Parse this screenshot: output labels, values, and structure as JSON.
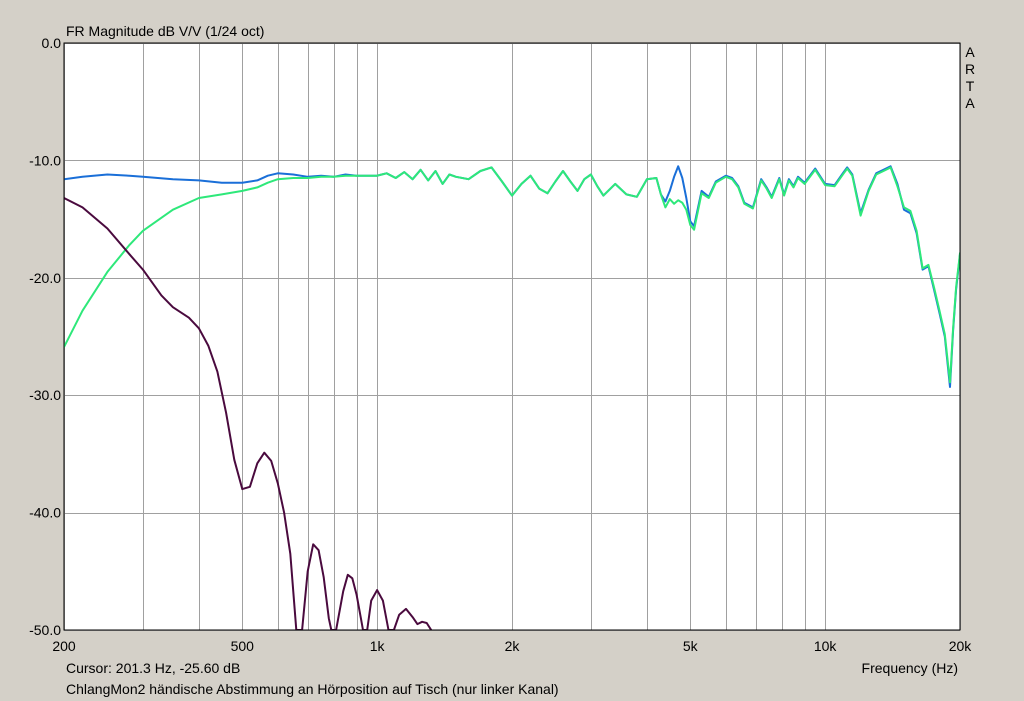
{
  "window": {
    "background_color": "#d4d0c8",
    "plot_background_color": "#ffffff",
    "grid_color": "#a0a0a0"
  },
  "chart_data": {
    "type": "line",
    "title": "FR Magnitude dB V/V (1/24 oct)",
    "xlabel": "Frequency (Hz)",
    "ylabel": "",
    "xscale": "log",
    "xlim": [
      200,
      20000
    ],
    "ylim": [
      -50,
      0
    ],
    "grid": true,
    "x_tick_labels": [
      {
        "value": 200,
        "label": "200"
      },
      {
        "value": 500,
        "label": "500"
      },
      {
        "value": 1000,
        "label": "1k"
      },
      {
        "value": 2000,
        "label": "2k"
      },
      {
        "value": 5000,
        "label": "5k"
      },
      {
        "value": 10000,
        "label": "10k"
      },
      {
        "value": 20000,
        "label": "20k"
      }
    ],
    "x_gridlines": [
      200,
      300,
      400,
      500,
      600,
      700,
      800,
      900,
      1000,
      2000,
      3000,
      4000,
      5000,
      6000,
      7000,
      8000,
      9000,
      10000,
      20000
    ],
    "y_ticks": [
      0,
      -10,
      -20,
      -30,
      -40,
      -50
    ],
    "y_tick_labels": [
      "0.0",
      "-10.0",
      "-20.0",
      "-30.0",
      "-40.0",
      "-50.0"
    ],
    "watermark_letters": [
      "A",
      "R",
      "T",
      "A"
    ],
    "cursor_readout": "Cursor: 201.3 Hz, -25.60 dB",
    "caption": "ChlangMon2 händische Abstimmung an Hörposition auf Tisch (nur linker Kanal)",
    "series": [
      {
        "color": "#1a6fd8",
        "points": [
          [
            200,
            -11.6
          ],
          [
            220,
            -11.4
          ],
          [
            250,
            -11.2
          ],
          [
            280,
            -11.3
          ],
          [
            300,
            -11.4
          ],
          [
            350,
            -11.6
          ],
          [
            400,
            -11.7
          ],
          [
            450,
            -11.9
          ],
          [
            500,
            -11.9
          ],
          [
            540,
            -11.7
          ],
          [
            570,
            -11.3
          ],
          [
            600,
            -11.1
          ],
          [
            650,
            -11.2
          ],
          [
            700,
            -11.4
          ],
          [
            750,
            -11.3
          ],
          [
            800,
            -11.4
          ],
          [
            850,
            -11.2
          ],
          [
            900,
            -11.3
          ],
          [
            950,
            -11.3
          ],
          [
            1000,
            -11.3
          ],
          [
            1050,
            -11.1
          ],
          [
            1100,
            -11.5
          ],
          [
            1150,
            -11.0
          ],
          [
            1200,
            -11.6
          ],
          [
            1250,
            -10.8
          ],
          [
            1300,
            -11.7
          ],
          [
            1350,
            -10.9
          ],
          [
            1400,
            -12.0
          ],
          [
            1450,
            -11.2
          ],
          [
            1500,
            -11.4
          ],
          [
            1600,
            -11.6
          ],
          [
            1700,
            -10.9
          ],
          [
            1800,
            -10.6
          ],
          [
            1900,
            -11.8
          ],
          [
            2000,
            -13.0
          ],
          [
            2100,
            -12.0
          ],
          [
            2200,
            -11.3
          ],
          [
            2300,
            -12.4
          ],
          [
            2400,
            -12.8
          ],
          [
            2500,
            -11.8
          ],
          [
            2600,
            -10.9
          ],
          [
            2700,
            -11.8
          ],
          [
            2800,
            -12.6
          ],
          [
            2900,
            -11.6
          ],
          [
            3000,
            -11.2
          ],
          [
            3100,
            -12.2
          ],
          [
            3200,
            -13.0
          ],
          [
            3400,
            -12.0
          ],
          [
            3600,
            -12.9
          ],
          [
            3800,
            -13.1
          ],
          [
            4000,
            -11.6
          ],
          [
            4200,
            -11.5
          ],
          [
            4300,
            -12.9
          ],
          [
            4400,
            -13.5
          ],
          [
            4500,
            -12.6
          ],
          [
            4600,
            -11.4
          ],
          [
            4700,
            -10.5
          ],
          [
            4800,
            -11.5
          ],
          [
            4900,
            -13.2
          ],
          [
            5000,
            -15.2
          ],
          [
            5100,
            -15.6
          ],
          [
            5300,
            -12.6
          ],
          [
            5500,
            -13.1
          ],
          [
            5700,
            -11.8
          ],
          [
            6000,
            -11.3
          ],
          [
            6200,
            -11.5
          ],
          [
            6400,
            -12.2
          ],
          [
            6600,
            -13.6
          ],
          [
            6900,
            -14.0
          ],
          [
            7200,
            -11.6
          ],
          [
            7400,
            -12.3
          ],
          [
            7600,
            -13.1
          ],
          [
            7900,
            -11.5
          ],
          [
            8100,
            -12.9
          ],
          [
            8300,
            -11.6
          ],
          [
            8500,
            -12.2
          ],
          [
            8700,
            -11.4
          ],
          [
            9000,
            -11.9
          ],
          [
            9500,
            -10.7
          ],
          [
            10000,
            -12.0
          ],
          [
            10500,
            -12.1
          ],
          [
            11000,
            -11.0
          ],
          [
            11200,
            -10.6
          ],
          [
            11500,
            -11.2
          ],
          [
            12000,
            -14.5
          ],
          [
            12500,
            -12.5
          ],
          [
            13000,
            -11.1
          ],
          [
            13500,
            -10.8
          ],
          [
            14000,
            -10.5
          ],
          [
            14500,
            -12.0
          ],
          [
            15000,
            -14.2
          ],
          [
            15500,
            -14.5
          ],
          [
            16000,
            -16.2
          ],
          [
            16500,
            -19.3
          ],
          [
            17000,
            -19.0
          ],
          [
            17500,
            -21.0
          ],
          [
            18000,
            -23.0
          ],
          [
            18500,
            -25.0
          ],
          [
            19000,
            -29.3
          ],
          [
            19300,
            -24.5
          ],
          [
            19600,
            -21.0
          ],
          [
            20000,
            -18.0
          ],
          [
            20400,
            -19.8
          ]
        ]
      },
      {
        "color": "#2ee87a",
        "points": [
          [
            200,
            -25.9
          ],
          [
            220,
            -22.8
          ],
          [
            250,
            -19.5
          ],
          [
            280,
            -17.2
          ],
          [
            300,
            -16.0
          ],
          [
            350,
            -14.2
          ],
          [
            400,
            -13.2
          ],
          [
            450,
            -12.9
          ],
          [
            500,
            -12.6
          ],
          [
            540,
            -12.3
          ],
          [
            570,
            -11.9
          ],
          [
            600,
            -11.6
          ],
          [
            650,
            -11.5
          ],
          [
            700,
            -11.5
          ],
          [
            750,
            -11.4
          ],
          [
            800,
            -11.4
          ],
          [
            850,
            -11.3
          ],
          [
            900,
            -11.3
          ],
          [
            950,
            -11.3
          ],
          [
            1000,
            -11.3
          ],
          [
            1050,
            -11.1
          ],
          [
            1100,
            -11.5
          ],
          [
            1150,
            -11.0
          ],
          [
            1200,
            -11.6
          ],
          [
            1250,
            -10.8
          ],
          [
            1300,
            -11.7
          ],
          [
            1350,
            -10.9
          ],
          [
            1400,
            -12.0
          ],
          [
            1450,
            -11.2
          ],
          [
            1500,
            -11.4
          ],
          [
            1600,
            -11.6
          ],
          [
            1700,
            -10.9
          ],
          [
            1800,
            -10.6
          ],
          [
            1900,
            -11.8
          ],
          [
            2000,
            -13.0
          ],
          [
            2100,
            -12.0
          ],
          [
            2200,
            -11.3
          ],
          [
            2300,
            -12.4
          ],
          [
            2400,
            -12.8
          ],
          [
            2500,
            -11.8
          ],
          [
            2600,
            -10.9
          ],
          [
            2700,
            -11.8
          ],
          [
            2800,
            -12.6
          ],
          [
            2900,
            -11.6
          ],
          [
            3000,
            -11.2
          ],
          [
            3100,
            -12.2
          ],
          [
            3200,
            -13.0
          ],
          [
            3400,
            -12.0
          ],
          [
            3600,
            -12.9
          ],
          [
            3800,
            -13.1
          ],
          [
            4000,
            -11.6
          ],
          [
            4200,
            -11.5
          ],
          [
            4300,
            -12.9
          ],
          [
            4400,
            -14.0
          ],
          [
            4500,
            -13.3
          ],
          [
            4600,
            -13.7
          ],
          [
            4700,
            -13.4
          ],
          [
            4800,
            -13.6
          ],
          [
            4900,
            -14.2
          ],
          [
            5000,
            -15.5
          ],
          [
            5100,
            -15.9
          ],
          [
            5300,
            -12.8
          ],
          [
            5500,
            -13.2
          ],
          [
            5700,
            -11.9
          ],
          [
            6000,
            -11.4
          ],
          [
            6200,
            -11.6
          ],
          [
            6400,
            -12.3
          ],
          [
            6600,
            -13.7
          ],
          [
            6900,
            -14.1
          ],
          [
            7200,
            -11.7
          ],
          [
            7400,
            -12.4
          ],
          [
            7600,
            -13.2
          ],
          [
            7900,
            -11.6
          ],
          [
            8100,
            -13.0
          ],
          [
            8300,
            -11.7
          ],
          [
            8500,
            -12.3
          ],
          [
            8700,
            -11.5
          ],
          [
            9000,
            -12.0
          ],
          [
            9500,
            -10.8
          ],
          [
            10000,
            -12.1
          ],
          [
            10500,
            -12.2
          ],
          [
            11000,
            -11.1
          ],
          [
            11200,
            -10.7
          ],
          [
            11500,
            -11.3
          ],
          [
            12000,
            -14.7
          ],
          [
            12500,
            -12.6
          ],
          [
            13000,
            -11.2
          ],
          [
            13500,
            -10.9
          ],
          [
            14000,
            -10.6
          ],
          [
            14500,
            -12.2
          ],
          [
            15000,
            -14.0
          ],
          [
            15500,
            -14.3
          ],
          [
            16000,
            -16.0
          ],
          [
            16500,
            -19.2
          ],
          [
            17000,
            -18.9
          ],
          [
            17500,
            -20.8
          ],
          [
            18000,
            -22.8
          ],
          [
            18500,
            -24.8
          ],
          [
            19000,
            -28.9
          ],
          [
            19300,
            -24.3
          ],
          [
            19600,
            -20.8
          ],
          [
            20000,
            -17.9
          ],
          [
            20400,
            -19.6
          ]
        ]
      },
      {
        "color": "#4a0a3e",
        "points": [
          [
            200,
            -13.2
          ],
          [
            220,
            -14.0
          ],
          [
            250,
            -15.8
          ],
          [
            280,
            -18.0
          ],
          [
            300,
            -19.3
          ],
          [
            330,
            -21.5
          ],
          [
            350,
            -22.5
          ],
          [
            380,
            -23.4
          ],
          [
            400,
            -24.3
          ],
          [
            420,
            -25.8
          ],
          [
            440,
            -28.0
          ],
          [
            460,
            -31.5
          ],
          [
            480,
            -35.5
          ],
          [
            500,
            -38.0
          ],
          [
            520,
            -37.8
          ],
          [
            540,
            -35.8
          ],
          [
            560,
            -34.9
          ],
          [
            580,
            -35.6
          ],
          [
            600,
            -37.5
          ],
          [
            620,
            -40.0
          ],
          [
            640,
            -43.5
          ],
          [
            660,
            -50.0
          ],
          [
            680,
            -50.0
          ],
          [
            700,
            -45.0
          ],
          [
            720,
            -42.7
          ],
          [
            740,
            -43.2
          ],
          [
            760,
            -45.5
          ],
          [
            780,
            -49.0
          ],
          [
            790,
            -50.0
          ],
          [
            810,
            -50.0
          ],
          [
            840,
            -46.7
          ],
          [
            860,
            -45.3
          ],
          [
            880,
            -45.6
          ],
          [
            900,
            -47.0
          ],
          [
            920,
            -49.0
          ],
          [
            930,
            -50.0
          ],
          [
            950,
            -50.0
          ],
          [
            970,
            -47.5
          ],
          [
            1000,
            -46.6
          ],
          [
            1030,
            -47.5
          ],
          [
            1060,
            -50.0
          ],
          [
            1090,
            -50.0
          ],
          [
            1120,
            -48.7
          ],
          [
            1160,
            -48.2
          ],
          [
            1200,
            -48.9
          ],
          [
            1230,
            -49.5
          ],
          [
            1260,
            -49.3
          ],
          [
            1290,
            -49.4
          ],
          [
            1320,
            -50.0
          ]
        ]
      }
    ]
  }
}
